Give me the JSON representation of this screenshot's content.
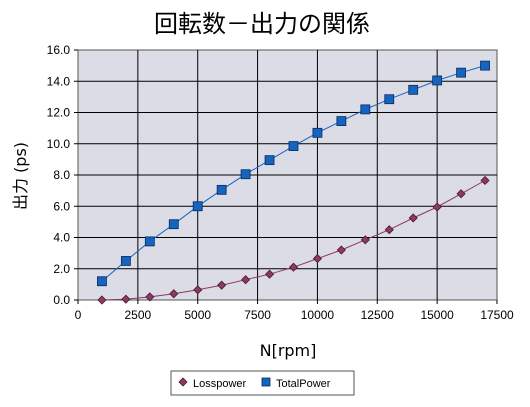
{
  "chart_data": {
    "type": "line",
    "title": "回転数－出力の関係",
    "xlabel": "N[rpm]",
    "ylabel": "出力 (ps)",
    "xlim": [
      0,
      17500
    ],
    "ylim": [
      0,
      16
    ],
    "xticks": [
      0,
      2500,
      5000,
      7500,
      10000,
      12500,
      15000,
      17500
    ],
    "xtick_labels": [
      "0",
      "2500",
      "5000",
      "7500",
      "10000",
      "12500",
      "15000",
      "17500"
    ],
    "yticks": [
      0,
      2,
      4,
      6,
      8,
      10,
      12,
      14,
      16
    ],
    "ytick_labels": [
      "0.0",
      "2.0",
      "4.0",
      "6.0",
      "8.0",
      "10.0",
      "12.0",
      "14.0",
      "16.0"
    ],
    "grid": true,
    "legend_position": "bottom",
    "x": [
      1000,
      2000,
      3000,
      4000,
      5000,
      6000,
      7000,
      8000,
      9000,
      10000,
      11000,
      12000,
      13000,
      14000,
      15000,
      16000,
      17000
    ],
    "series": [
      {
        "name": "Losspower",
        "marker": "diamond",
        "color": "#8B3A62",
        "values": [
          0.0,
          0.05,
          0.2,
          0.4,
          0.65,
          0.95,
          1.3,
          1.65,
          2.1,
          2.65,
          3.2,
          3.85,
          4.5,
          5.25,
          5.95,
          6.8,
          7.65
        ]
      },
      {
        "name": "TotalPower",
        "marker": "square",
        "color": "#1565C0",
        "values": [
          1.2,
          2.5,
          3.75,
          4.85,
          6.0,
          7.05,
          8.05,
          8.95,
          9.85,
          10.7,
          11.45,
          12.2,
          12.85,
          13.45,
          14.05,
          14.55,
          15.0
        ]
      }
    ]
  }
}
